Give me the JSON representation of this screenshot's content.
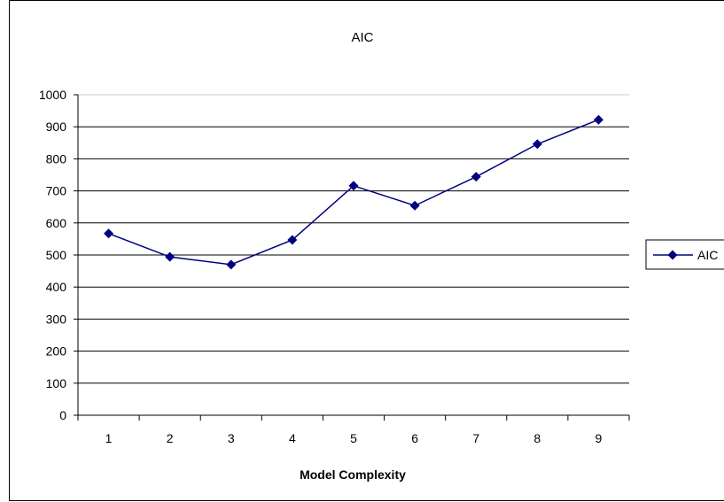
{
  "chart_data": {
    "type": "line",
    "title": "AIC",
    "xlabel": "Model Complexity",
    "ylabel": "",
    "categories": [
      "1",
      "2",
      "3",
      "4",
      "5",
      "6",
      "7",
      "8",
      "9"
    ],
    "series": [
      {
        "name": "AIC",
        "values": [
          567,
          494,
          470,
          547,
          716,
          654,
          744,
          846,
          922
        ],
        "color": "#000080",
        "marker": "diamond"
      }
    ],
    "ylim": [
      0,
      1000
    ],
    "yticks": [
      "0",
      "100",
      "200",
      "300",
      "400",
      "500",
      "600",
      "700",
      "800",
      "900",
      "1000"
    ],
    "grid": "horizontal",
    "legend_position": "right"
  }
}
